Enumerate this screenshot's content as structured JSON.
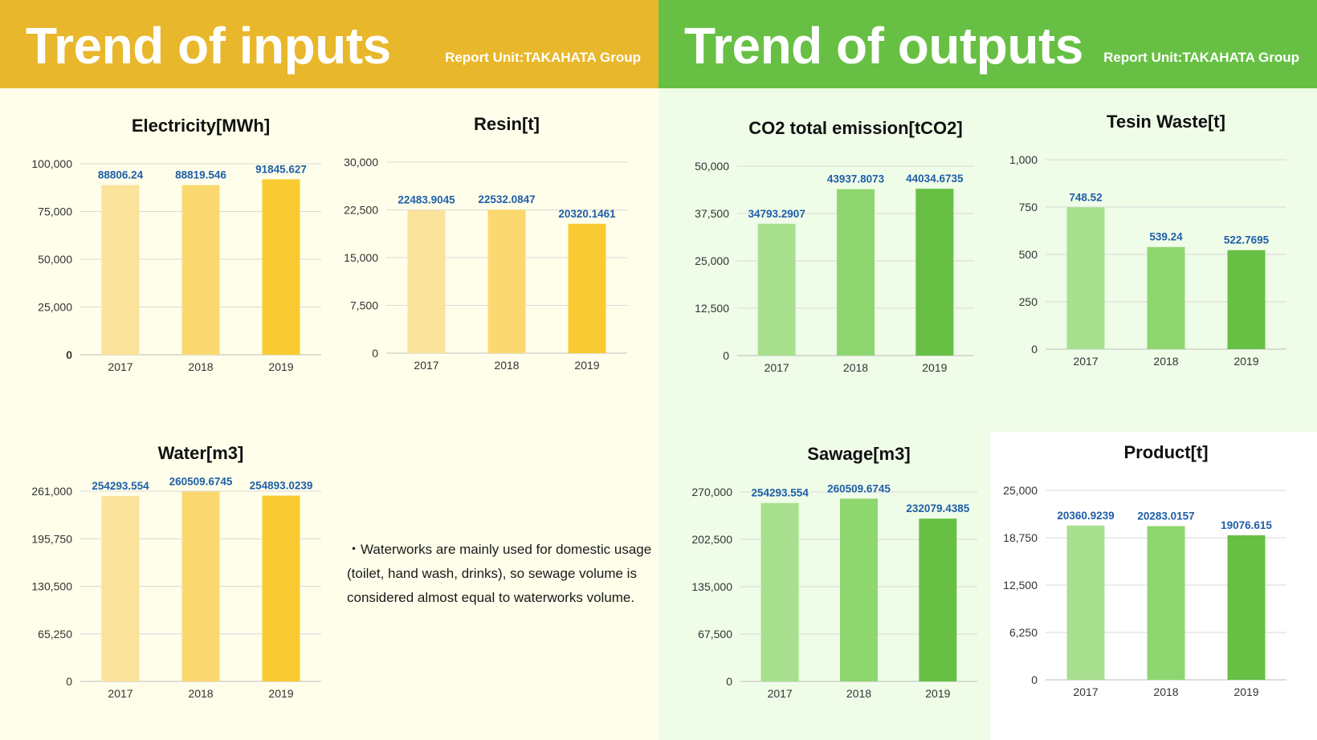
{
  "left_header": {
    "title": "Trend of inputs",
    "unit": "Report Unit:TAKAHATA Group"
  },
  "right_header": {
    "title": "Trend of outputs",
    "unit": "Report Unit:TAKAHATA Group"
  },
  "note": "・Waterworks are mainly used for domestic usage (toilet, hand wash, drinks), so sewage volume is considered almost equal to waterworks volume.",
  "palette": {
    "yellow": [
      "#fce39b",
      "#fcd970",
      "#f9cb32"
    ],
    "green": [
      "#a8e08f",
      "#8ed66f",
      "#67c044"
    ],
    "value_label": "#1f5fa8",
    "grid": "#d9d9d9",
    "axis_text": "#333333"
  },
  "chart_data": [
    {
      "id": "electricity",
      "type": "bar",
      "title": "Electricity[MWh]",
      "categories": [
        "2017",
        "2018",
        "2019"
      ],
      "values": [
        88806.24,
        88819.546,
        91845.627
      ],
      "value_labels": [
        "88806.24",
        "88819.546",
        "91845.627"
      ],
      "ylim": [
        0,
        100000
      ],
      "ticks": [
        "0",
        "25,000",
        "50,000",
        "75,000",
        "100,000"
      ],
      "palette": "yellow"
    },
    {
      "id": "resin",
      "type": "bar",
      "title": "Resin[t]",
      "categories": [
        "2017",
        "2018",
        "2019"
      ],
      "values": [
        22483.9045,
        22532.0847,
        20320.1461
      ],
      "value_labels": [
        "22483.9045",
        "22532.0847",
        "20320.1461"
      ],
      "ylim": [
        0,
        30000
      ],
      "ticks": [
        "0",
        "7,500",
        "15,000",
        "22,500",
        "30,000"
      ],
      "palette": "yellow"
    },
    {
      "id": "water",
      "type": "bar",
      "title": "Water[m3]",
      "categories": [
        "2017",
        "2018",
        "2019"
      ],
      "values": [
        254293.554,
        260509.6745,
        254893.0239
      ],
      "value_labels": [
        "254293.554",
        "260509.6745",
        "254893.0239"
      ],
      "ylim": [
        0,
        261000
      ],
      "ticks": [
        "0",
        "65,250",
        "130,500",
        "195,750",
        "261,000"
      ],
      "palette": "yellow"
    },
    {
      "id": "co2",
      "type": "bar",
      "title": "CO2 total emission[tCO2]",
      "categories": [
        "2017",
        "2018",
        "2019"
      ],
      "values": [
        34793.2907,
        43937.8073,
        44034.6735
      ],
      "value_labels": [
        "34793.2907",
        "43937.8073",
        "44034.6735"
      ],
      "ylim": [
        0,
        50000
      ],
      "ticks": [
        "0",
        "12,500",
        "25,000",
        "37,500",
        "50,000"
      ],
      "palette": "green"
    },
    {
      "id": "waste",
      "type": "bar",
      "title": "Tesin Waste[t]",
      "categories": [
        "2017",
        "2018",
        "2019"
      ],
      "values": [
        748.52,
        539.24,
        522.7695
      ],
      "value_labels": [
        "748.52",
        "539.24",
        "522.7695"
      ],
      "ylim": [
        0,
        1000
      ],
      "ticks": [
        "0",
        "250",
        "500",
        "750",
        "1,000"
      ],
      "palette": "green"
    },
    {
      "id": "sewage",
      "type": "bar",
      "title": "Sawage[m3]",
      "categories": [
        "2017",
        "2018",
        "2019"
      ],
      "values": [
        254293.554,
        260509.6745,
        232079.4385
      ],
      "value_labels": [
        "254293.554",
        "260509.6745",
        "232079.4385"
      ],
      "ylim": [
        0,
        270000
      ],
      "ticks": [
        "0",
        "67,500",
        "135,000",
        "202,500",
        "270,000"
      ],
      "palette": "green"
    },
    {
      "id": "product",
      "type": "bar",
      "title": "Product[t]",
      "categories": [
        "2017",
        "2018",
        "2019"
      ],
      "values": [
        20360.9239,
        20283.0157,
        19076.615
      ],
      "value_labels": [
        "20360.9239",
        "20283.0157",
        "19076.615"
      ],
      "ylim": [
        0,
        25000
      ],
      "ticks": [
        "0",
        "6,250",
        "12,500",
        "18,750",
        "25,000"
      ],
      "palette": "green"
    }
  ]
}
